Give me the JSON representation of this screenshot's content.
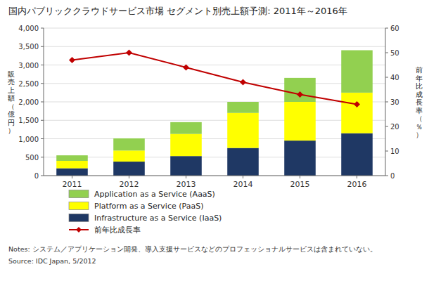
{
  "chart_data": {
    "type": "bar",
    "stacked": true,
    "title": "国内パブリッククラウドサービス市場 セグメント別売上額予測: 2011年～2016年",
    "ylabel": "販売上額（億円）",
    "y2label": "前年比成長率（％）",
    "categories": [
      "2011",
      "2012",
      "2013",
      "2014",
      "2015",
      "2016"
    ],
    "series": [
      {
        "name": "Infrastructure as a Service (IaaS)",
        "color": "#1F3864",
        "values": [
          200,
          380,
          530,
          750,
          950,
          1150
        ]
      },
      {
        "name": "Platform as a Service (PaaS)",
        "color": "#FFFF00",
        "values": [
          200,
          300,
          600,
          950,
          1050,
          1100
        ]
      },
      {
        "name": "Application as a Service (AaaS)",
        "color": "#92D050",
        "values": [
          150,
          330,
          320,
          300,
          650,
          1150
        ]
      },
      {
        "name": "前年比成長率",
        "type": "line",
        "axis": "y2",
        "color": "#C00000",
        "marker": "diamond",
        "line_style": "solid",
        "values": [
          47,
          50,
          44,
          38,
          33,
          29
        ]
      }
    ],
    "ylim": [
      0,
      4000
    ],
    "yticks": [
      0,
      500,
      {
        "value": 1000,
        "label": "1,000"
      },
      {
        "value": 1500,
        "label": "1,500"
      },
      {
        "value": 2000,
        "label": "2,000"
      },
      {
        "value": 2500,
        "label": "2,500"
      },
      {
        "value": 3000,
        "label": "3,000"
      },
      {
        "value": 3500,
        "label": "3,500"
      },
      {
        "value": 4000,
        "label": "4,000"
      }
    ],
    "y2lim": [
      0,
      60
    ],
    "y2ticks": [
      0,
      10,
      20,
      30,
      40,
      50,
      60
    ],
    "grid": true,
    "legend": "bottom",
    "annotations": [
      "Notes: システム／アプリケーション開発、導入支援サービスなどのプロフェッショナルサービスは含まれていない。",
      "Source: IDC Japan, 5/2012"
    ]
  }
}
